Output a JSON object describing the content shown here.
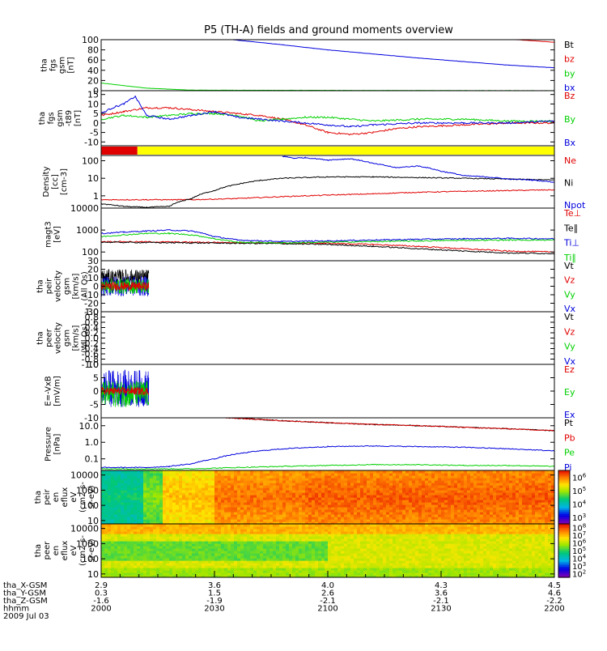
{
  "title": "P5 (TH-A) fields and ground moments overview",
  "time_axis": {
    "rows": [
      {
        "label": "tha_X-GSM",
        "values": [
          "2.9",
          "3.6",
          "4.0",
          "4.3",
          "4.5"
        ]
      },
      {
        "label": "tha_Y-GSM",
        "values": [
          "0.3",
          "1.5",
          "2.6",
          "3.6",
          "4.6"
        ]
      },
      {
        "label": "tha_Z-GSM",
        "values": [
          "-1.6",
          "-1.9",
          "-2.1",
          "-2.1",
          "-2.2"
        ]
      },
      {
        "label": "hhmm",
        "values": [
          "2000",
          "2030",
          "2100",
          "2130",
          "2200"
        ]
      }
    ],
    "date": "2009 Jul 03"
  },
  "colors": {
    "black": "#000000",
    "red": "#e00000",
    "green": "#00d000",
    "blue": "#0000dd",
    "yellow": "#ffff00"
  },
  "chart_data": [
    {
      "type": "line",
      "id": "fgs",
      "ylabel": [
        "tha",
        "fgs",
        "gsm",
        "[nT]"
      ],
      "ylim": [
        0,
        100
      ],
      "ticks": [
        "0",
        "20",
        "40",
        "60",
        "80",
        "100"
      ],
      "legend": [
        "Bt",
        "bz",
        "by",
        "bx"
      ],
      "series": [
        {
          "name": "Bt",
          "color": "#000000",
          "x": [
            2000,
            2200
          ],
          "y": [
            null,
            null
          ]
        },
        {
          "name": "bz",
          "color": "#e00000",
          "x": [
            2183,
            2190,
            2200
          ],
          "y": [
            100,
            98,
            95
          ]
        },
        {
          "name": "by",
          "color": "#00d000",
          "x": [
            2000,
            2010,
            2020,
            2040,
            2200
          ],
          "y": [
            15,
            10,
            5,
            1,
            0
          ]
        },
        {
          "name": "bx",
          "color": "#0000dd",
          "x": [
            2058,
            2080,
            2100,
            2120,
            2140,
            2160,
            2180,
            2200
          ],
          "y": [
            100,
            90,
            80,
            72,
            64,
            57,
            50,
            45
          ]
        }
      ]
    },
    {
      "type": "line",
      "id": "fgs-dsl",
      "ylabel": [
        "tha",
        "fgs",
        "gsm",
        "-t89",
        "[nT]"
      ],
      "ylim": [
        -12,
        17
      ],
      "ticks": [
        "-10",
        "-5",
        "0",
        "5",
        "10",
        "15"
      ],
      "legend": [
        "Bz",
        "By",
        "Bx"
      ],
      "series": [
        {
          "name": "Bz",
          "color": "#e00000",
          "x": [
            2000,
            2010,
            2020,
            2030,
            2040,
            2050,
            2060,
            2070,
            2080,
            2090,
            2100,
            2110,
            2120,
            2130,
            2140,
            2160,
            2180,
            2200
          ],
          "y": [
            4,
            6,
            8,
            8,
            7,
            6,
            5,
            4,
            2,
            -1,
            -5,
            -6,
            -5,
            -3,
            -2,
            -1,
            0,
            0
          ]
        },
        {
          "name": "By",
          "color": "#00d000",
          "x": [
            2000,
            2010,
            2020,
            2030,
            2040,
            2050,
            2060,
            2070,
            2080,
            2090,
            2100,
            2120,
            2140,
            2160,
            2180,
            2200
          ],
          "y": [
            2,
            4,
            3,
            4,
            5,
            5,
            4,
            1,
            2,
            3,
            3,
            1,
            2,
            2,
            1,
            1
          ]
        },
        {
          "name": "Bx",
          "color": "#0000dd",
          "x": [
            2000,
            2005,
            2010,
            2015,
            2020,
            2030,
            2040,
            2050,
            2060,
            2070,
            2080,
            2090,
            2100,
            2110,
            2120,
            2140,
            2160,
            2180,
            2200
          ],
          "y": [
            5,
            8,
            10,
            14,
            4,
            2,
            4,
            6,
            3,
            2,
            1,
            0,
            -1,
            -2,
            -1,
            0,
            0,
            0,
            1
          ]
        }
      ]
    },
    {
      "type": "bar",
      "id": "mode-bar",
      "segments": [
        {
          "from": 2000,
          "to": 2016,
          "color": "#e00000"
        },
        {
          "from": 2016,
          "to": 2200,
          "color": "#ffff00"
        }
      ]
    },
    {
      "type": "line",
      "id": "density",
      "ylabel": [
        "Density",
        "[cc]",
        "[cm-3]"
      ],
      "scale": "log",
      "ylim": [
        0.2,
        200
      ],
      "ticks": [
        "1",
        "10",
        "100"
      ],
      "legend": [
        "Ne",
        "Ni",
        "Npot"
      ],
      "series": [
        {
          "name": "Ne",
          "color": "#e00000",
          "x": [
            2000,
            2020,
            2040,
            2060,
            2080,
            2100,
            2120,
            2140,
            2160,
            2180,
            2200
          ],
          "y": [
            0.6,
            0.6,
            0.6,
            0.7,
            0.9,
            1.1,
            1.3,
            1.6,
            1.8,
            2.0,
            2.2
          ]
        },
        {
          "name": "Ni",
          "color": "#000000",
          "x": [
            2000,
            2010,
            2020,
            2030,
            2040,
            2050,
            2060,
            2070,
            2080,
            2100,
            2120,
            2140,
            2160,
            2180,
            2200
          ],
          "y": [
            0.35,
            0.25,
            0.22,
            0.25,
            0.7,
            2,
            4.5,
            7.5,
            10,
            12,
            12,
            11,
            10,
            9,
            8
          ]
        },
        {
          "name": "Npot",
          "color": "#0000dd",
          "x": [
            2080,
            2085,
            2090,
            2100,
            2110,
            2120,
            2130,
            2140,
            2150,
            2160,
            2170,
            2180,
            2190,
            2200
          ],
          "y": [
            180,
            140,
            150,
            110,
            130,
            70,
            40,
            50,
            25,
            14,
            12,
            9,
            8,
            6
          ]
        }
      ]
    },
    {
      "type": "line",
      "id": "mag-temp",
      "ylabel": [
        "magt3",
        "[eV]"
      ],
      "scale": "log",
      "ylim": [
        40,
        10000
      ],
      "ticks": [
        "100",
        "1000",
        "10000"
      ],
      "legend": [
        "Te⊥",
        "Te∥",
        "Ti⊥",
        "Ti∥"
      ],
      "series": [
        {
          "name": "Te⊥",
          "color": "#e00000",
          "x": [
            2000,
            2020,
            2040,
            2060,
            2080,
            2100,
            2120,
            2140,
            2160,
            2180,
            2200
          ],
          "y": [
            300,
            290,
            280,
            270,
            260,
            250,
            220,
            180,
            140,
            110,
            100
          ]
        },
        {
          "name": "Te∥",
          "color": "#000000",
          "x": [
            2000,
            2020,
            2040,
            2060,
            2080,
            2100,
            2120,
            2140,
            2160,
            2180,
            2200
          ],
          "y": [
            280,
            270,
            260,
            250,
            240,
            220,
            180,
            140,
            110,
            90,
            85
          ]
        },
        {
          "name": "Ti⊥",
          "color": "#0000dd",
          "x": [
            2000,
            2010,
            2020,
            2030,
            2040,
            2050,
            2060,
            2080,
            2100,
            2120,
            2140,
            2160,
            2180,
            2200
          ],
          "y": [
            700,
            800,
            900,
            1000,
            900,
            500,
            350,
            300,
            320,
            350,
            380,
            400,
            420,
            400
          ]
        },
        {
          "name": "Ti∥",
          "color": "#00d000",
          "x": [
            2000,
            2010,
            2020,
            2030,
            2040,
            2050,
            2060,
            2080,
            2100,
            2120,
            2140,
            2160,
            2180,
            2200
          ],
          "y": [
            500,
            600,
            700,
            700,
            600,
            400,
            280,
            260,
            280,
            300,
            320,
            340,
            350,
            350
          ]
        }
      ]
    },
    {
      "type": "line",
      "id": "peir-velocity",
      "ylabel": [
        "tha",
        "peir",
        "velocity",
        "gsm",
        "[km/s]",
        "(All Qs)"
      ],
      "ylim": [
        -30,
        30
      ],
      "ticks": [
        "-30",
        "-20",
        "-10",
        "0",
        "10",
        "20",
        "30"
      ],
      "legend": [
        "Vt",
        "Vz",
        "Vy",
        "Vx"
      ],
      "noise_xrange": [
        2000,
        2021
      ],
      "series": [
        {
          "name": "Vt",
          "color": "#000000",
          "level": 10,
          "spread": 10
        },
        {
          "name": "Vx",
          "color": "#0000dd",
          "level": 0,
          "spread": 12
        },
        {
          "name": "Vy",
          "color": "#00d000",
          "level": 0,
          "spread": 9
        },
        {
          "name": "Vz",
          "color": "#e00000",
          "level": 0,
          "spread": 5
        }
      ]
    },
    {
      "type": "line",
      "id": "peer-velocity",
      "ylabel": [
        "tha",
        "peer",
        "velocity",
        "gsm",
        "[km/s]",
        "(All Qs)"
      ],
      "ylim": [
        -1,
        1
      ],
      "ticks": [
        "-1.0",
        "-0.8",
        "-0.6",
        "-0.4",
        "-0.2",
        "0.0",
        "0.2",
        "0.4",
        "0.6",
        "0.8",
        "1.0"
      ],
      "legend": [
        "Vt",
        "Vz",
        "Vy",
        "Vx"
      ],
      "series": []
    },
    {
      "type": "line",
      "id": "efield",
      "ylabel": [
        "E=-VxB",
        "[mV/m]"
      ],
      "ylim": [
        -10,
        10
      ],
      "ticks": [
        "-10",
        "-5",
        "0",
        "5",
        "10"
      ],
      "legend": [
        "Ez",
        "Ey",
        "Ex"
      ],
      "noise_xrange": [
        2000,
        2021
      ],
      "series": [
        {
          "name": "Ex",
          "color": "#0000dd",
          "level": 1,
          "spread": 7
        },
        {
          "name": "Ey",
          "color": "#00d000",
          "level": -1,
          "spread": 5
        },
        {
          "name": "Ez",
          "color": "#e00000",
          "level": 0,
          "spread": 1.5
        }
      ]
    },
    {
      "type": "line",
      "id": "pressure",
      "ylabel": [
        "Pressure",
        "[nPa]"
      ],
      "scale": "log",
      "ylim": [
        0.02,
        30
      ],
      "ticks": [
        "0.1",
        "1.0",
        "10.0"
      ],
      "legend": [
        "Pt",
        "Pb",
        "Pe",
        "Pi"
      ],
      "series": [
        {
          "name": "Pt",
          "color": "#000000",
          "x": [
            2055,
            2080,
            2100,
            2120,
            2140,
            2160,
            2180,
            2200
          ],
          "y": [
            30,
            20,
            15,
            12,
            10,
            8,
            6.5,
            5
          ]
        },
        {
          "name": "Pb",
          "color": "#e00000",
          "x": [
            2055,
            2080,
            2100,
            2120,
            2140,
            2160,
            2180,
            2200
          ],
          "y": [
            30,
            20,
            15,
            12,
            10,
            8,
            6.5,
            5
          ]
        },
        {
          "name": "Pe",
          "color": "#00d000",
          "x": [
            2000,
            2020,
            2040,
            2060,
            2080,
            2100,
            2120,
            2140,
            2160,
            2180,
            2200
          ],
          "y": [
            0.025,
            0.025,
            0.025,
            0.03,
            0.035,
            0.04,
            0.045,
            0.045,
            0.04,
            0.04,
            0.035
          ]
        },
        {
          "name": "Pi",
          "color": "#0000dd",
          "x": [
            2000,
            2010,
            2020,
            2030,
            2040,
            2050,
            2060,
            2080,
            2100,
            2120,
            2140,
            2160,
            2180,
            2200
          ],
          "y": [
            0.03,
            0.03,
            0.03,
            0.035,
            0.05,
            0.1,
            0.2,
            0.4,
            0.55,
            0.6,
            0.55,
            0.5,
            0.4,
            0.3
          ]
        }
      ]
    },
    {
      "type": "heatmap",
      "id": "peir-en-eflux",
      "ylabel": [
        "tha",
        "peir",
        "en",
        "eflux",
        "eV",
        "(cm2-s-",
        "sr-eV)"
      ],
      "scale": "log",
      "ylim": [
        6,
        20000
      ],
      "ticks": [
        "10",
        "100",
        "1000",
        "10000"
      ],
      "colorbar_ticks": [
        "3",
        "4",
        "5",
        "6"
      ],
      "colorbar_range": [
        2.5,
        6.5
      ],
      "levels": [
        {
          "until": 2018,
          "value": 4.3
        },
        {
          "until": 2027,
          "value": 4.8
        },
        {
          "until": 2050,
          "value": 5.6
        },
        {
          "until": 2090,
          "value": 6.0
        },
        {
          "until": 2200,
          "value": 6.1
        }
      ]
    },
    {
      "type": "heatmap",
      "id": "peer-en-eflux",
      "ylabel": [
        "tha",
        "peer",
        "en",
        "eflux",
        "eV",
        "(cm2-s-",
        "sr-eV)"
      ],
      "scale": "log",
      "ylim": [
        6,
        20000
      ],
      "ticks": [
        "10",
        "100",
        "1000",
        "10000"
      ],
      "colorbar_ticks": [
        "2",
        "3",
        "4",
        "5",
        "6",
        "7",
        "8"
      ],
      "colorbar_range": [
        1.5,
        8.5
      ],
      "levels": [
        {
          "until": 2200,
          "value": 6.5
        }
      ]
    }
  ]
}
